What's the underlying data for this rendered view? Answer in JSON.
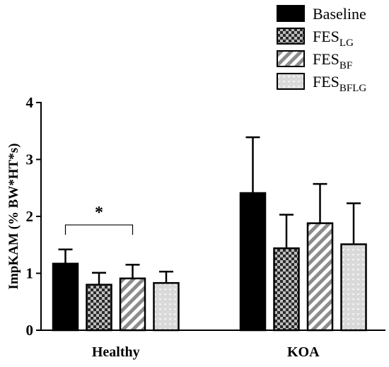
{
  "chart_data": {
    "type": "bar",
    "ylabel": "ImpKAM (% BW*HT*s)",
    "ylim": [
      0,
      4
    ],
    "yticks": [
      "0",
      "1",
      "2",
      "3",
      "4"
    ],
    "categories": [
      "Healthy",
      "KOA"
    ],
    "series": [
      {
        "name": "Baseline",
        "subscript": "",
        "pattern": "solid-black",
        "values": [
          1.17,
          2.41
        ],
        "errors": [
          0.25,
          0.98
        ]
      },
      {
        "name": "FES",
        "subscript": "LG",
        "pattern": "checkerboard",
        "values": [
          0.8,
          1.44
        ],
        "errors": [
          0.21,
          0.59
        ]
      },
      {
        "name": "FES",
        "subscript": "BF",
        "pattern": "diagonal-stripes",
        "values": [
          0.91,
          1.88
        ],
        "errors": [
          0.24,
          0.69
        ]
      },
      {
        "name": "FES",
        "subscript": "BFLG",
        "pattern": "light-dotted",
        "values": [
          0.83,
          1.51
        ],
        "errors": [
          0.2,
          0.72
        ]
      }
    ],
    "annotations": [
      {
        "text": "*",
        "group": "Healthy",
        "from_series": 0,
        "to_series": 2,
        "bracket_y": 1.85
      }
    ],
    "legend_position": "top-right",
    "grid": false
  }
}
